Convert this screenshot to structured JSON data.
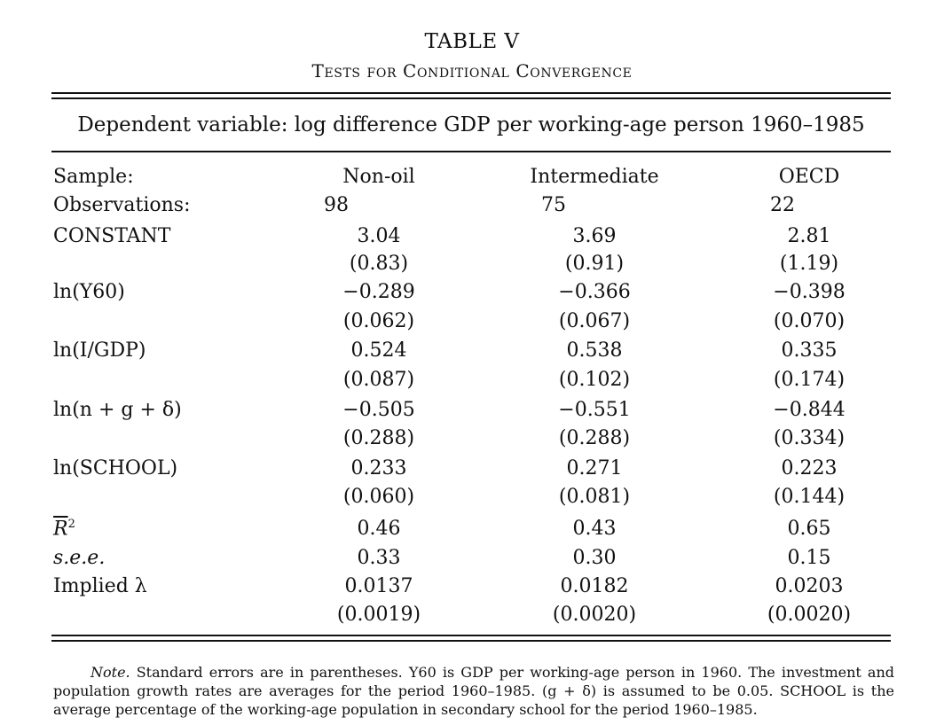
{
  "table": {
    "title": "TABLE V",
    "subtitle": "Tests for Conditional Convergence",
    "dependent_variable": "Dependent variable: log difference GDP per working-age person 1960–1985",
    "sample_label": "Sample:",
    "columns": [
      "Non-oil",
      "Intermediate",
      "OECD"
    ],
    "observations_label": "Observations:",
    "observations": [
      "98",
      "75",
      "22"
    ],
    "rows": [
      {
        "label": "CONSTANT",
        "coef": [
          "3.04",
          "3.69",
          "2.81"
        ],
        "se": [
          "(0.83)",
          "(0.91)",
          "(1.19)"
        ]
      },
      {
        "label": "ln(Y60)",
        "coef": [
          "−0.289",
          "−0.366",
          "−0.398"
        ],
        "se": [
          "(0.062)",
          "(0.067)",
          "(0.070)"
        ]
      },
      {
        "label": "ln(I/GDP)",
        "coef": [
          "0.524",
          "0.538",
          "0.335"
        ],
        "se": [
          "(0.087)",
          "(0.102)",
          "(0.174)"
        ]
      },
      {
        "label": "ln(n + g + δ)",
        "coef": [
          "−0.505",
          "−0.551",
          "−0.844"
        ],
        "se": [
          "(0.288)",
          "(0.288)",
          "(0.334)"
        ]
      },
      {
        "label": "ln(SCHOOL)",
        "coef": [
          "0.233",
          "0.271",
          "0.223"
        ],
        "se": [
          "(0.060)",
          "(0.081)",
          "(0.144)"
        ]
      }
    ],
    "r2_label": "R",
    "r2_sup": "2",
    "r2": [
      "0.46",
      "0.43",
      "0.65"
    ],
    "see_label": "s.e.e.",
    "see": [
      "0.33",
      "0.30",
      "0.15"
    ],
    "lambda_label": "Implied λ",
    "lambda": [
      "0.0137",
      "0.0182",
      "0.0203"
    ],
    "lambda_se": [
      "(0.0019)",
      "(0.0020)",
      "(0.0020)"
    ]
  },
  "note": {
    "prefix": "Note.",
    "text": " Standard errors are in parentheses. Y60 is GDP per working-age person in 1960. The investment and population growth rates are averages for the period 1960–1985. (g + δ) is assumed to be 0.05. SCHOOL is the average percentage of the working-age population in secondary school for the period 1960–1985."
  }
}
